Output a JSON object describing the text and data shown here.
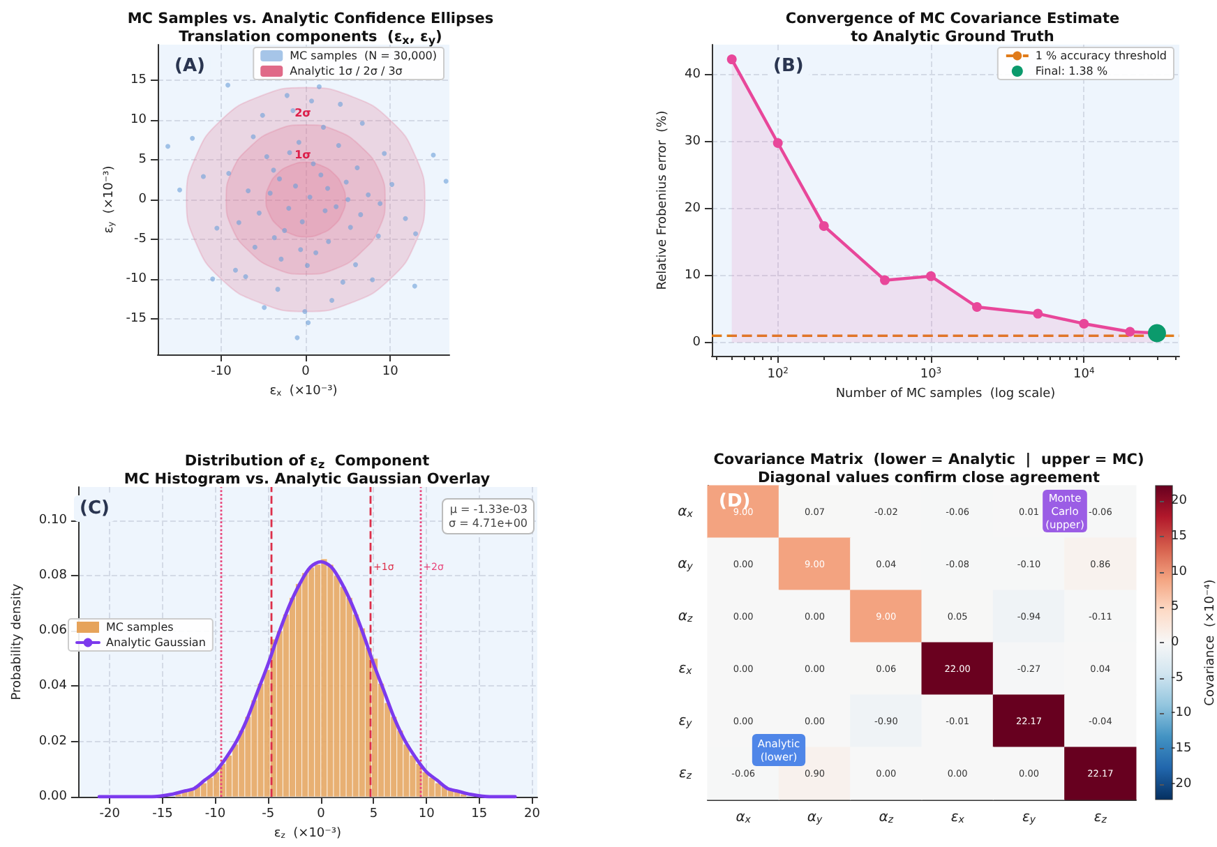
{
  "chart_data": [
    {
      "type": "scatter",
      "title": "MC Samples vs. Analytic Confidence Ellipses\nTranslation components  (ε$_{x}$, ε$_{y}$)",
      "xlabel": "ε$_{x}$  (×10⁻³)",
      "ylabel": "ε$_{y}$  (×10⁻³)",
      "xlim": [
        -17.5,
        17
      ],
      "xticks": [
        -10,
        0,
        10
      ],
      "ylim": [
        -19.5,
        19.5
      ],
      "yticks": [
        -15,
        -10,
        -5,
        0,
        5,
        10,
        15
      ],
      "grid": true,
      "legend": "top right",
      "annotations": [
        "(A)",
        "2σ",
        "1σ"
      ],
      "series": [
        {
          "type": "scatter",
          "name": "MC samples  (N = 30,000)",
          "color": "#6a9fd8",
          "x": [
            0.5,
            -1.2,
            2.3,
            -3.1,
            1.8,
            -0.4,
            3.6,
            -2.5,
            0.9,
            -4.2,
            4.8,
            -5.5,
            2.7,
            -1.9,
            6.1,
            -6.8,
            1.2,
            -3.7,
            5.3,
            -0.8,
            7.4,
            -7.9,
            3.9,
            -4.6,
            0.2,
            8.6,
            -9.1,
            2.1,
            -2.9,
            5.9,
            -6.2,
            10.2,
            -10.5,
            4.4,
            -1.5,
            6.7,
            -3.3,
            0.7,
            -8.3,
            9.3,
            -5.1,
            3.1,
            -0.1,
            11.8,
            -12.1,
            7.9,
            -7.1,
            1.6,
            -2.2,
            4.1,
            -4.9,
            12.9,
            -13.4,
            15.1,
            -16.3,
            -14.9,
            16.6,
            -9.2,
            13.0,
            -1.0,
            0.3,
            -2.0,
            5.0,
            -6.0,
            8.8,
            -11.0,
            2.6,
            -3.8,
            6.5,
            -0.6
          ],
          "values": [
            0.3,
            1.7,
            -1.4,
            2.6,
            3.1,
            -2.8,
            -0.9,
            -3.9,
            4.5,
            0.8,
            2.2,
            -1.7,
            -5.3,
            5.9,
            4.0,
            1.1,
            -6.7,
            -4.8,
            -3.5,
            7.2,
            0.6,
            -2.9,
            6.8,
            5.4,
            -8.3,
            -4.6,
            3.3,
            9.1,
            -7.5,
            -8.2,
            7.9,
            1.9,
            -3.6,
            -10.4,
            11.2,
            9.6,
            -11.3,
            12.4,
            -8.9,
            5.8,
            10.6,
            -12.7,
            -14.1,
            -2.4,
            2.9,
            -10.1,
            -9.7,
            14.2,
            13.1,
            12.0,
            -13.6,
            -10.9,
            7.7,
            5.6,
            6.7,
            1.2,
            2.3,
            14.4,
            -4.3,
            -17.4,
            -15.5,
            -1.1,
            0.0,
            -6.0,
            -0.5,
            -10.0,
            1.4,
            3.7,
            -1.9,
            -6.3
          ]
        },
        {
          "type": "area",
          "name": "Analytic 1σ / 2σ / 3σ",
          "color": "#e06a88",
          "x": [
            14.1,
            13,
            10,
            5.4,
            0,
            -5.4,
            -10,
            -13,
            -14.1,
            -13,
            -10,
            -5.4,
            0,
            5.4,
            10,
            13
          ],
          "values": [
            0,
            5.4,
            10,
            13,
            14.1,
            13,
            10,
            5.4,
            0,
            -5.4,
            -10,
            -13,
            -14.1,
            -13,
            -10,
            -5.4
          ]
        },
        {
          "type": "area",
          "color": "#e06a88",
          "x": [
            9.4,
            8.7,
            6.6,
            3.6,
            0,
            -3.6,
            -6.6,
            -8.7,
            -9.4,
            -8.7,
            -6.6,
            -3.6,
            0,
            3.6,
            6.6,
            8.7
          ],
          "values": [
            0,
            3.6,
            6.6,
            8.7,
            9.4,
            8.7,
            6.6,
            3.6,
            0,
            -3.6,
            -6.6,
            -8.7,
            -9.4,
            -8.7,
            -6.6,
            -3.6
          ]
        },
        {
          "type": "area",
          "color": "#e06a88",
          "x": [
            4.7,
            4.3,
            3.3,
            1.8,
            0,
            -1.8,
            -3.3,
            -4.3,
            -4.7,
            -4.3,
            -3.3,
            -1.8,
            0,
            1.8,
            3.3,
            4.3
          ],
          "values": [
            0,
            1.8,
            3.3,
            4.3,
            4.7,
            4.3,
            3.3,
            1.8,
            0,
            -1.8,
            -3.3,
            -4.3,
            -4.7,
            -4.3,
            -3.3,
            -1.8
          ]
        }
      ]
    },
    {
      "type": "line",
      "title": "Convergence of MC Covariance Estimate\nto Analytic Ground Truth",
      "xlabel": "Number of MC samples  (log scale)",
      "ylabel": "Relative Frobenius error  (%)",
      "log": "x",
      "xlim": [
        37,
        42000
      ],
      "xticks": [
        {
          "value": 100,
          "label": "10$^{2}$"
        },
        {
          "value": 1000,
          "label": "10$^{3}$"
        },
        {
          "value": 10000,
          "label": "10$^{4}$"
        }
      ],
      "ylim": [
        -2,
        44.5
      ],
      "yticks": [
        0,
        10,
        20,
        30,
        40
      ],
      "grid": true,
      "legend": "top right",
      "marker": "circle",
      "annotations": [
        "(B)"
      ],
      "ref_lines": [
        {
          "axis": "y",
          "value": 1,
          "label": "1 % accuracy threshold",
          "color": "#e07b1a",
          "line_style": "dashed"
        }
      ],
      "series": [
        {
          "type": "area",
          "color": "#e8479a",
          "x": [
            50,
            100,
            200,
            500,
            1000,
            2000,
            5000,
            10000,
            20000,
            30000
          ],
          "values": [
            42.3,
            29.8,
            17.4,
            9.3,
            9.9,
            5.3,
            4.3,
            2.8,
            1.6,
            1.4
          ]
        },
        {
          "type": "scatter",
          "name": "Final: 1.38 %",
          "color": "#0b9a6c",
          "x": [
            30000
          ],
          "values": [
            1.4
          ]
        }
      ]
    },
    {
      "type": "histogram",
      "title": "Distribution of ε$_{z}$  Component\nMC Histogram vs. Analytic Gaussian Overlay",
      "xlabel": "ε$_{z}$  (×10⁻³)",
      "ylabel": "Probability density",
      "xlim": [
        -23,
        20.5
      ],
      "xticks": [
        -20,
        -15,
        -10,
        -5,
        0,
        5,
        10,
        15,
        20
      ],
      "ylim": [
        0,
        0.112
      ],
      "yticks": [
        {
          "value": 0,
          "label": "0.00"
        },
        {
          "value": 0.02,
          "label": "0.02"
        },
        {
          "value": 0.04,
          "label": "0.04"
        },
        {
          "value": 0.06,
          "label": "0.06"
        },
        {
          "value": 0.08,
          "label": "0.08"
        },
        {
          "value": 0.1,
          "label": "0.10"
        }
      ],
      "grid": true,
      "legend": "left",
      "annotations": [
        "(C)",
        "μ = -1.33e-03\nσ = 4.71e+00"
      ],
      "ref_lines": [
        {
          "axis": "x",
          "value": -9.42,
          "label": null,
          "color": "#e8447a",
          "line_style": "dotted"
        },
        {
          "axis": "x",
          "value": -4.71,
          "label": null,
          "color": "#dc2f4a",
          "line_style": "dashed"
        },
        {
          "axis": "x",
          "value": 4.71,
          "label": "+1σ",
          "color": "#dc2f4a",
          "line_style": "dashed"
        },
        {
          "axis": "x",
          "value": 9.42,
          "label": "+2σ",
          "color": "#e8447a",
          "line_style": "dotted"
        }
      ],
      "series": [
        {
          "type": "histogram",
          "name": "MC samples",
          "color": "#e6a35a",
          "bins": [
            -13.8,
            -13.2,
            -12.6,
            -12.0,
            -11.4,
            -10.8,
            -10.2,
            -9.6,
            -9.0,
            -8.4,
            -7.8,
            -7.2,
            -6.6,
            -6.0,
            -5.4,
            -4.8,
            -4.2,
            -3.6,
            -3.0,
            -2.4,
            -1.8,
            -1.2,
            -0.6,
            0,
            0.6,
            1.2,
            1.8,
            2.4,
            3.0,
            3.6,
            4.2,
            4.8,
            5.4,
            6.0,
            6.6,
            7.2,
            7.8,
            8.4,
            9.0,
            9.6,
            10.2,
            10.8,
            11.4,
            12.0,
            12.6,
            13.2,
            13.8
          ],
          "values": [
            0.001,
            0.002,
            0.003,
            0.004,
            0.005,
            0.007,
            0.009,
            0.012,
            0.015,
            0.019,
            0.024,
            0.029,
            0.035,
            0.041,
            0.046,
            0.057,
            0.06,
            0.066,
            0.072,
            0.077,
            0.081,
            0.083,
            0.084,
            0.086,
            0.084,
            0.08,
            0.076,
            0.072,
            0.066,
            0.061,
            0.054,
            0.05,
            0.041,
            0.034,
            0.029,
            0.024,
            0.019,
            0.015,
            0.012,
            0.009,
            0.007,
            0.005,
            0.004,
            0.003,
            0.002,
            0.001
          ]
        },
        {
          "type": "line",
          "name": "Analytic Gaussian",
          "color": "#7c3aed",
          "x": [
            -21,
            -18,
            -16,
            -14,
            -13,
            -12,
            -11,
            -10,
            -9,
            -8,
            -7,
            -6,
            -5,
            -4,
            -3,
            -2,
            -1,
            0,
            1,
            2,
            3,
            4,
            5,
            6,
            7,
            8,
            9,
            10,
            11,
            12,
            13,
            14,
            16,
            18.4
          ],
          "values": [
            0.0,
            0.0,
            0.0,
            0.001,
            0.002,
            0.003,
            0.006,
            0.009,
            0.014,
            0.02,
            0.028,
            0.038,
            0.048,
            0.059,
            0.069,
            0.077,
            0.083,
            0.085,
            0.083,
            0.077,
            0.069,
            0.059,
            0.048,
            0.038,
            0.028,
            0.02,
            0.014,
            0.009,
            0.006,
            0.003,
            0.002,
            0.001,
            0.0,
            0.0
          ]
        }
      ]
    },
    {
      "type": "heatmap",
      "title": "Covariance Matrix  (lower = Analytic  |  upper = MC)\nDiagonal values confirm close agreement",
      "clabel": "Covariance  (×10⁻⁴)",
      "categories": [
        "α$_{x}$",
        "α$_{y}$",
        "α$_{z}$",
        "ε$_{x}$",
        "ε$_{y}$",
        "ε$_{z}$"
      ],
      "y_categories": [
        "α$_{x}$",
        "α$_{y}$",
        "α$_{z}$",
        "ε$_{x}$",
        "ε$_{y}$",
        "ε$_{z}$"
      ],
      "clim": [
        -22.17,
        22.17
      ],
      "cticks": [
        -20,
        -15,
        -10,
        -5,
        0,
        5,
        10,
        15,
        20
      ],
      "annotations": [
        "(D)",
        "Monte\nCarlo\n(upper)",
        "Analytic\n(lower)"
      ],
      "cells": [
        [
          9.0,
          0.07,
          -0.02,
          -0.06,
          0.01,
          -0.06
        ],
        [
          0.0,
          9.0,
          0.04,
          -0.08,
          -0.1,
          0.86
        ],
        [
          0.0,
          0.0,
          9.0,
          0.05,
          -0.94,
          -0.11
        ],
        [
          0.0,
          0.0,
          0.06,
          22.0,
          -0.27,
          0.04
        ],
        [
          0.0,
          0.0,
          -0.9,
          -0.01,
          22.17,
          -0.04
        ],
        [
          -0.06,
          0.9,
          0.0,
          0.0,
          0.0,
          22.17
        ]
      ],
      "cell_labels": [
        [
          "9.00",
          "0.07",
          "-0.02",
          "-0.06",
          "0.01",
          "-0.06"
        ],
        [
          "0.00",
          "9.00",
          "0.04",
          "-0.08",
          "-0.10",
          "0.86"
        ],
        [
          "0.00",
          "0.00",
          "9.00",
          "0.05",
          "-0.94",
          "-0.11"
        ],
        [
          "0.00",
          "0.00",
          "0.06",
          "22.00",
          "-0.27",
          "0.04"
        ],
        [
          "0.00",
          "0.00",
          "-0.90",
          "-0.01",
          "22.17",
          "-0.04"
        ],
        [
          "-0.06",
          "0.90",
          "0.00",
          "0.00",
          "0.00",
          "22.17"
        ]
      ]
    }
  ]
}
